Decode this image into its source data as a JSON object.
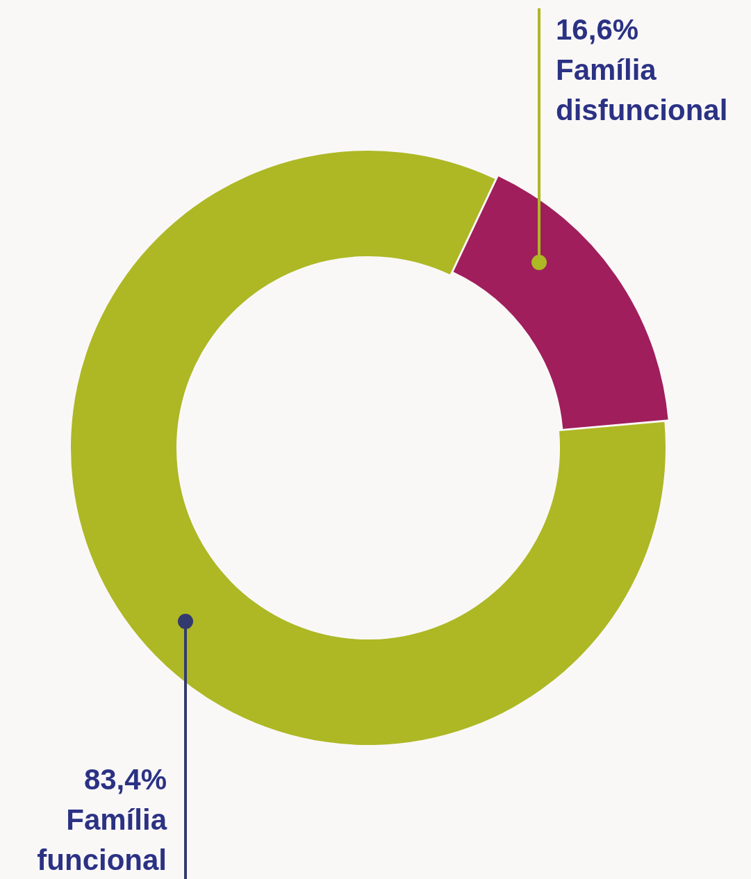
{
  "chart_data": {
    "type": "donut",
    "categories": [
      "Família funcional",
      "Família disfuncional"
    ],
    "values": [
      83.4,
      16.6
    ],
    "colors": [
      "#adb824",
      "#a01e5c"
    ],
    "value_labels": [
      "83,4%",
      "16,6%"
    ],
    "legend": false
  }
}
